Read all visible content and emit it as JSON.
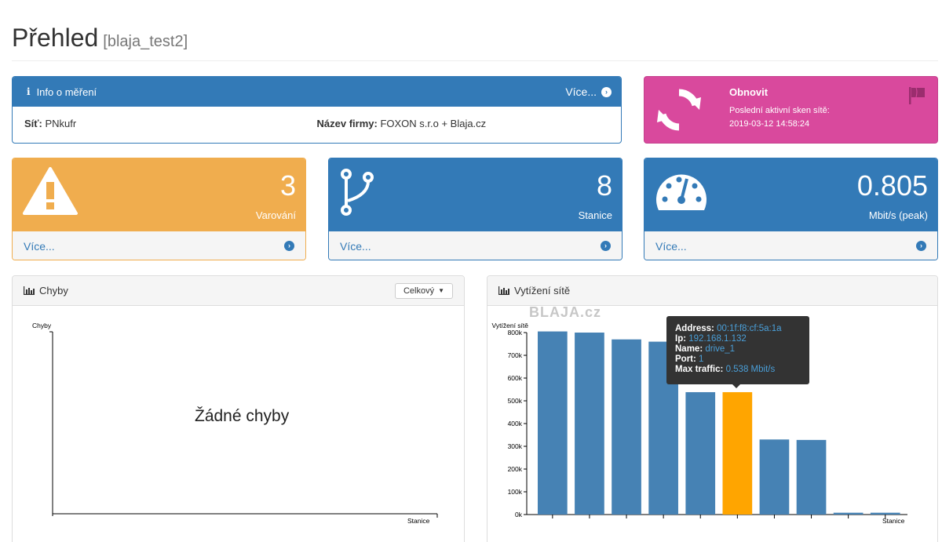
{
  "header": {
    "title": "Přehled",
    "subtitle": "[blaja_test2]"
  },
  "info": {
    "title": "Info o měření",
    "more": "Více...",
    "net_label": "Síť:",
    "net_value": "PNkufr",
    "company_label": "Název firmy:",
    "company_value": "FOXON s.r.o + Blaja.cz"
  },
  "refresh": {
    "title": "Obnovit",
    "subtitle": "Poslední aktivní sken sítě:",
    "timestamp": "2019-03-12 14:58:24",
    "color": "#d9499d"
  },
  "stats": [
    {
      "value": "3",
      "label": "Varování",
      "footer": "Více...",
      "icon": "warning-icon",
      "color": "#f0ad4e"
    },
    {
      "value": "8",
      "label": "Stanice",
      "footer": "Více...",
      "icon": "code-fork-icon",
      "color": "#337ab7"
    },
    {
      "value": "0.805",
      "label": "Mbit/s (peak)",
      "footer": "Více...",
      "icon": "dashboard-gauge-icon",
      "color": "#337ab7"
    }
  ],
  "errors_panel": {
    "title": "Chyby",
    "dropdown_value": "Celkový",
    "empty_message": "Žádné chyby",
    "y_axis_label": "Chyby",
    "x_axis_label": "Stanice"
  },
  "traffic_panel": {
    "title": "Vytížení sítě",
    "watermark": "BLAJA.cz",
    "y_axis_label": "Vytížení sítě",
    "x_axis_label": "Stanice"
  },
  "tooltip": {
    "address_label": "Address:",
    "address": "00:1f:f8:cf:5a:1a",
    "ip_label": "Ip:",
    "ip": "192.168.1.132",
    "name_label": "Name:",
    "name": "drive_1",
    "port_label": "Port:",
    "port": "1",
    "traffic_label": "Max traffic:",
    "traffic": "0.538 Mbit/s"
  },
  "chart_data": {
    "type": "bar",
    "title": "Vytížení sítě",
    "xlabel": "Stanice",
    "ylabel": "Vytížení sítě",
    "ylim": [
      0,
      800000
    ],
    "yticks": [
      "0k",
      "100k",
      "200k",
      "300k",
      "400k",
      "500k",
      "600k",
      "700k",
      "800k"
    ],
    "values": [
      805000,
      800000,
      770000,
      760000,
      538000,
      538000,
      330000,
      328000,
      8000,
      8000
    ],
    "bar_color": "#4682b4",
    "highlight_color": "#ffa500",
    "highlight_index": 5
  }
}
